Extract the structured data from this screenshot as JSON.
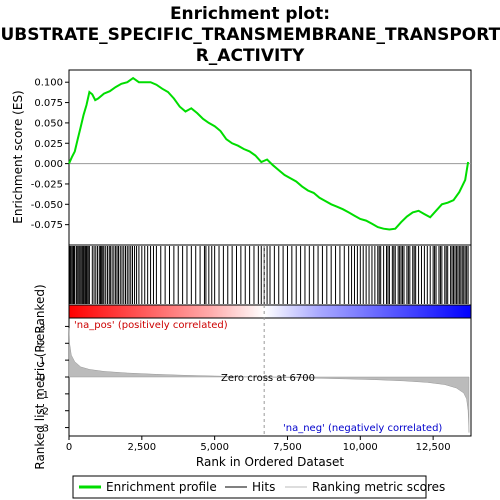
{
  "chart_data": {
    "type": "line",
    "title_lines": [
      "Enrichment plot:",
      "SUBSTRATE_SPECIFIC_TRANSMEMBRANE_TRANSPORTE",
      "R_ACTIVITY"
    ],
    "es_panel": {
      "ylabel": "Enrichment score (ES)",
      "ylim": [
        -0.1,
        0.115
      ],
      "yticks": [
        -0.075,
        -0.05,
        -0.025,
        0.0,
        0.025,
        0.05,
        0.075,
        0.1
      ],
      "ytick_labels": [
        "-0.075",
        "-0.050",
        "-0.025",
        "0.000",
        "0.025",
        "0.050",
        "0.075",
        "0.100"
      ],
      "series": [
        {
          "name": "Enrichment profile",
          "color": "#00dd00",
          "x": [
            0,
            100,
            200,
            300,
            400,
            500,
            600,
            700,
            800,
            900,
            1000,
            1200,
            1400,
            1600,
            1800,
            2000,
            2200,
            2400,
            2600,
            2800,
            3000,
            3200,
            3400,
            3600,
            3800,
            4000,
            4200,
            4400,
            4600,
            4800,
            5000,
            5200,
            5400,
            5600,
            5800,
            6000,
            6200,
            6400,
            6600,
            6800,
            7000,
            7200,
            7400,
            7600,
            7800,
            8000,
            8200,
            8400,
            8600,
            8800,
            9000,
            9200,
            9400,
            9600,
            9800,
            10000,
            10200,
            10400,
            10600,
            10800,
            11000,
            11200,
            11400,
            11600,
            11800,
            12000,
            12200,
            12400,
            12600,
            12800,
            13000,
            13200,
            13400,
            13600,
            13700
          ],
          "y": [
            0.0,
            0.008,
            0.015,
            0.03,
            0.045,
            0.06,
            0.072,
            0.088,
            0.085,
            0.078,
            0.08,
            0.086,
            0.089,
            0.094,
            0.098,
            0.1,
            0.105,
            0.1,
            0.1,
            0.1,
            0.097,
            0.092,
            0.088,
            0.08,
            0.07,
            0.064,
            0.068,
            0.062,
            0.055,
            0.05,
            0.046,
            0.04,
            0.03,
            0.025,
            0.022,
            0.018,
            0.015,
            0.01,
            0.002,
            0.005,
            -0.002,
            -0.008,
            -0.014,
            -0.018,
            -0.022,
            -0.028,
            -0.033,
            -0.036,
            -0.042,
            -0.046,
            -0.05,
            -0.053,
            -0.056,
            -0.06,
            -0.064,
            -0.068,
            -0.07,
            -0.074,
            -0.078,
            -0.08,
            -0.081,
            -0.08,
            -0.072,
            -0.065,
            -0.06,
            -0.058,
            -0.062,
            -0.066,
            -0.058,
            -0.05,
            -0.048,
            -0.045,
            -0.035,
            -0.02,
            0.002
          ]
        }
      ]
    },
    "hits": [
      0,
      30,
      60,
      100,
      140,
      170,
      200,
      260,
      300,
      340,
      380,
      420,
      460,
      500,
      540,
      560,
      590,
      620,
      660,
      700,
      800,
      860,
      920,
      980,
      1040,
      1080,
      1120,
      1160,
      1200,
      1260,
      1320,
      1380,
      1420,
      1480,
      1540,
      1600,
      1650,
      1700,
      1760,
      1820,
      1880,
      1940,
      2000,
      2060,
      2120,
      2180,
      2250,
      2320,
      2400,
      2500,
      2600,
      2700,
      2800,
      2900,
      3000,
      3150,
      3300,
      3450,
      3600,
      3750,
      3900,
      4050,
      4200,
      4350,
      4500,
      4650,
      4700,
      4800,
      4900,
      5000,
      5150,
      5300,
      5450,
      5600,
      5750,
      5900,
      6050,
      6200,
      6350,
      6500,
      6600,
      6700,
      6800,
      6900,
      7050,
      7200,
      7350,
      7500,
      7650,
      7800,
      7950,
      8100,
      8250,
      8400,
      8550,
      8700,
      8850,
      9000,
      9150,
      9300,
      9450,
      9600,
      9700,
      9800,
      9900,
      10000,
      10100,
      10200,
      10300,
      10400,
      10500,
      10600,
      10650,
      10700,
      10800,
      10900,
      10950,
      11000,
      11100,
      11150,
      11200,
      11300,
      11350,
      11400,
      11450,
      11500,
      11600,
      11650,
      11700,
      11800,
      11850,
      11900,
      12000,
      12100,
      12200,
      12300,
      12400,
      12500,
      12550,
      12600,
      12700,
      12750,
      12800,
      12900,
      12950,
      13000,
      13100,
      13150,
      13200,
      13250,
      13300,
      13350,
      13400,
      13450,
      13500,
      13550,
      13600,
      13650,
      13700
    ],
    "rank_panel": {
      "ylabel": "Ranked list metric (PreRanked)",
      "xlabel": "Rank in Ordered Dataset",
      "ylim": [
        -3.5,
        3.5
      ],
      "yticks": [
        -3,
        -2,
        -1,
        0,
        1,
        2,
        3
      ],
      "xlim": [
        0,
        13800
      ],
      "xticks": [
        0,
        2500,
        5000,
        7500,
        10000,
        12500
      ],
      "xtick_labels": [
        "0",
        "2,500",
        "5,000",
        "7,500",
        "10,000",
        "12,500"
      ],
      "zero_cross": 6700,
      "metric_points": [
        [
          0,
          2.9
        ],
        [
          20,
          2.0
        ],
        [
          80,
          1.3
        ],
        [
          200,
          0.9
        ],
        [
          400,
          0.6
        ],
        [
          700,
          0.45
        ],
        [
          1200,
          0.33
        ],
        [
          2000,
          0.24
        ],
        [
          3000,
          0.16
        ],
        [
          4000,
          0.1
        ],
        [
          5000,
          0.06
        ],
        [
          6000,
          0.02
        ],
        [
          6700,
          0.0
        ],
        [
          7500,
          -0.03
        ],
        [
          8500,
          -0.07
        ],
        [
          9500,
          -0.11
        ],
        [
          10500,
          -0.16
        ],
        [
          11500,
          -0.23
        ],
        [
          12300,
          -0.32
        ],
        [
          12900,
          -0.45
        ],
        [
          13300,
          -0.65
        ],
        [
          13550,
          -0.95
        ],
        [
          13650,
          -1.3
        ],
        [
          13700,
          -2.0
        ],
        [
          13730,
          -3.3
        ]
      ],
      "series_name": "Ranking metric scores"
    },
    "annotations": {
      "pos_label": "'na_pos' (positively correlated)",
      "neg_label": "'na_neg' (negatively correlated)",
      "zero_label": "Zero cross at 6700"
    },
    "legend": [
      {
        "label": "Enrichment profile",
        "color": "#00dd00"
      },
      {
        "label": "Hits",
        "color": "#000000"
      },
      {
        "label": "Ranking metric scores",
        "color": "#bbbbbb"
      }
    ],
    "colors": {
      "gradient_pos": "#ff0000",
      "gradient_neg": "#0000ff",
      "profile": "#00dd00",
      "zero_line": "#999999"
    }
  }
}
